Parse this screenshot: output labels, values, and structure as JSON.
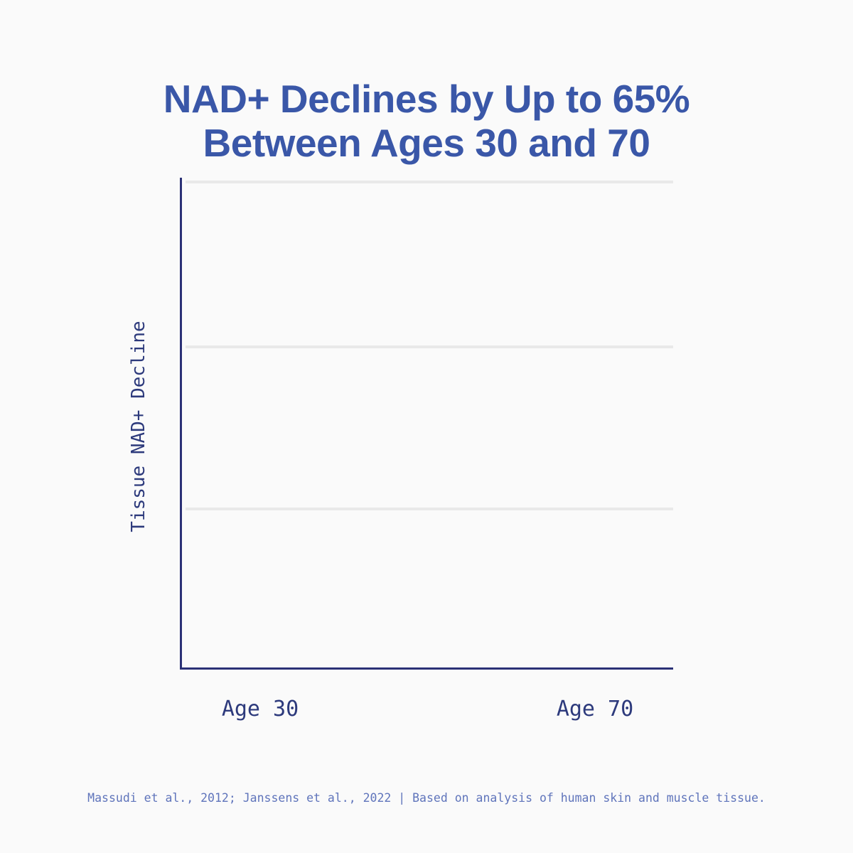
{
  "title": {
    "line1": "NAD+ Declines by Up to 65%",
    "line2": "Between Ages 30 and 70",
    "full": "NAD+ Declines by Up to 65% Between Ages 30 and 70"
  },
  "chart": {
    "ylabel": "Tissue NAD+ Decline",
    "x_labels": [
      "Age 30",
      "Age 70"
    ]
  },
  "footer": {
    "text": "Massudi et al., 2012; Janssens et al., 2022 | Based on analysis of human skin and muscle tissue."
  },
  "colors": {
    "background": "#fafafa",
    "title_blue": "#3a57a8",
    "axis_navy": "#2b3176",
    "tick_label_navy": "#2d3a7c",
    "footer_blue": "#5f74bb",
    "gridline_gray": "#e9e9e9"
  },
  "chart_data": {
    "type": "line",
    "title": "NAD+ Declines by Up to 65% Between Ages 30 and 70",
    "categories": [
      "Age 30",
      "Age 70"
    ],
    "series": [],
    "xlabel": "",
    "ylabel": "Tissue NAD+ Decline",
    "y_tick_labels": [],
    "horizontal_gridlines": 3,
    "grid_on": true,
    "legend": false,
    "plot_area_empty": true,
    "implied_message": "Tissue NAD+ declines by up to 65% between ages 30 and 70 (no data series rendered in this frame)"
  }
}
